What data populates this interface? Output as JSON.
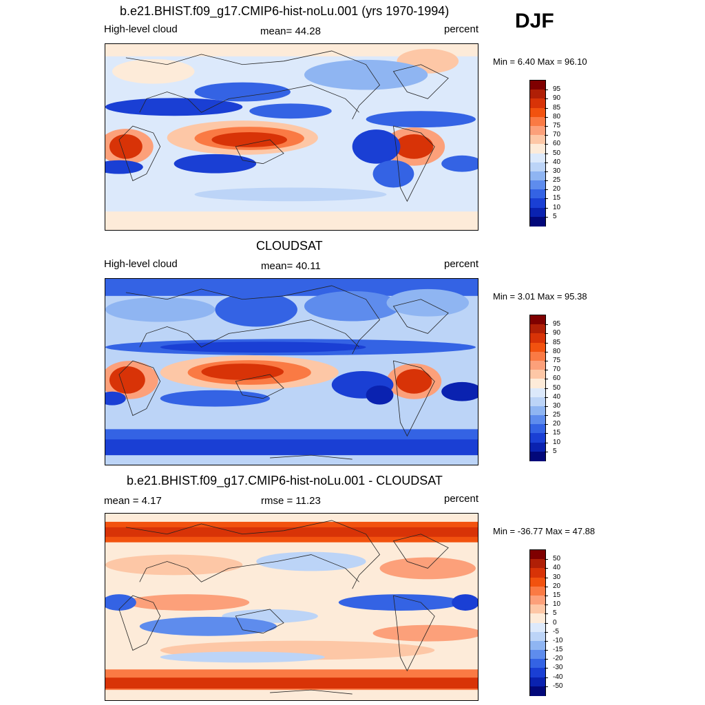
{
  "season": "DJF",
  "panels": [
    {
      "title": "b.e21.BHIST.f09_g17.CMIP6-hist-noLu.001 (yrs 1970-1994)",
      "left_label": "High-level cloud",
      "center_label": "mean=  44.28",
      "right_label": "percent",
      "minmax": "Min =   6.40 Max =  96.10"
    },
    {
      "title": "CLOUDSAT",
      "left_label": "High-level cloud",
      "center_label": "mean=  40.11",
      "right_label": "percent",
      "minmax": "Min =   3.01 Max =  95.38"
    },
    {
      "title": "b.e21.BHIST.f09_g17.CMIP6-hist-noLu.001 - CLOUDSAT",
      "left_label": "mean =   4.17",
      "center_label": "rmse =  11.23",
      "right_label": "percent",
      "minmax": "Min = -36.77 Max =  47.88"
    }
  ],
  "colorbars": [
    {
      "labels": [
        "95",
        "90",
        "85",
        "80",
        "75",
        "70",
        "60",
        "50",
        "40",
        "30",
        "25",
        "20",
        "15",
        "10",
        "5"
      ]
    },
    {
      "labels": [
        "95",
        "90",
        "85",
        "80",
        "75",
        "70",
        "60",
        "50",
        "40",
        "30",
        "25",
        "20",
        "15",
        "10",
        "5"
      ]
    },
    {
      "labels": [
        "50",
        "40",
        "30",
        "20",
        "15",
        "10",
        "5",
        "0",
        "-5",
        "-10",
        "-15",
        "-20",
        "-30",
        "-40",
        "-50"
      ]
    }
  ],
  "colors": {
    "scale": [
      "#7f0000",
      "#b01f06",
      "#d83307",
      "#f2520f",
      "#fa7a44",
      "#fca07a",
      "#fdc7a6",
      "#fdebd9",
      "#dce9fb",
      "#bcd4f7",
      "#8fb5f2",
      "#5e8ced",
      "#3463e4",
      "#1a3fd4",
      "#0a22b0",
      "#02087a"
    ]
  }
}
